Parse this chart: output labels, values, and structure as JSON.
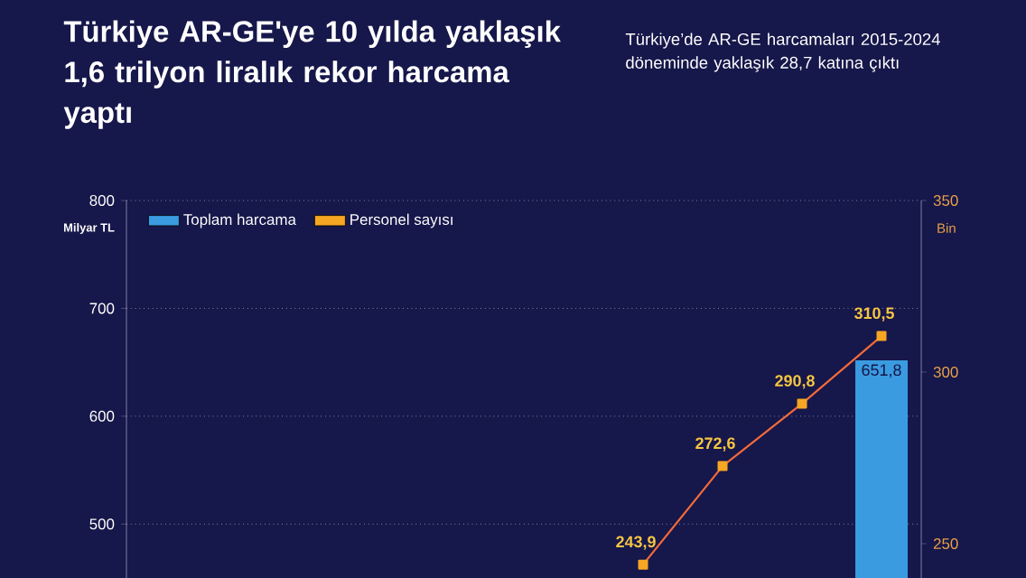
{
  "chart_data": {
    "type": "bar",
    "title": "Türkiye AR-GE'ye 10 yılda yaklaşık 1,6 trilyon liralık rekor harcama yaptı",
    "subtitle": "Türkiye’de AR-GE harcamaları 2015-2024 döneminde yaklaşık 28,7 katına çıktı",
    "ylabel": "Milyar TL",
    "y2label": "Bin",
    "categories": [
      null,
      null,
      null,
      null,
      null,
      null,
      null,
      null,
      null,
      null
    ],
    "series": [
      {
        "name": "Toplam harcama",
        "color": "#3a9be0",
        "values": [
          null,
          null,
          null,
          null,
          null,
          null,
          null,
          null,
          null,
          651.8
        ],
        "value_labels": [
          null,
          null,
          null,
          null,
          null,
          null,
          null,
          null,
          null,
          "651,8"
        ]
      },
      {
        "name": "Personel sayısı",
        "type": "line",
        "axis": "y2",
        "color": "#f26b3a",
        "values": [
          null,
          null,
          null,
          null,
          null,
          null,
          243.9,
          272.6,
          290.8,
          310.5
        ],
        "value_labels": [
          null,
          null,
          null,
          null,
          null,
          null,
          "243,9",
          "272,6",
          "290,8",
          "310,5"
        ]
      }
    ],
    "ylim": [
      450,
      800
    ],
    "yticks": [
      500,
      600,
      700,
      800
    ],
    "y2lim": [
      240,
      350
    ],
    "y2ticks": [
      250,
      300,
      350
    ],
    "grid": "y",
    "legend": "top left",
    "marker": "square"
  }
}
